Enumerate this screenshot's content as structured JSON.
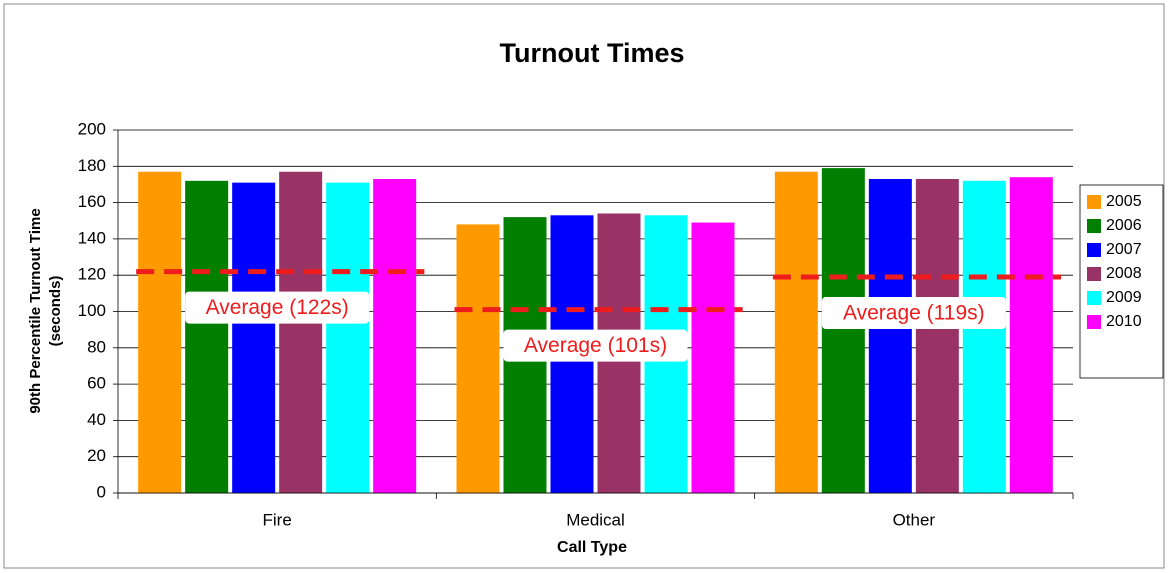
{
  "chart_data": {
    "type": "bar",
    "title": "Turnout Times",
    "ylabel": [
      "90th Percentile Turnout Time",
      "(seconds)"
    ],
    "xlabel": "Call Type",
    "categories": [
      "Fire",
      "Medical",
      "Other"
    ],
    "series": [
      {
        "name": "2005",
        "color": "#ff9900",
        "values": [
          177,
          148,
          177
        ]
      },
      {
        "name": "2006",
        "color": "#007f00",
        "values": [
          172,
          152,
          179
        ]
      },
      {
        "name": "2007",
        "color": "#0000ff",
        "values": [
          171,
          153,
          173
        ]
      },
      {
        "name": "2008",
        "color": "#993366",
        "values": [
          177,
          154,
          173
        ]
      },
      {
        "name": "2009",
        "color": "#00ffff",
        "values": [
          171,
          153,
          172
        ]
      },
      {
        "name": "2010",
        "color": "#ff00ff",
        "values": [
          173,
          149,
          174
        ]
      }
    ],
    "averages": {
      "color": "#ee1c1c",
      "values": [
        122,
        101,
        119
      ],
      "value_labels": [
        "Average (122s)",
        "Average (101s)",
        "Average (119s)"
      ]
    },
    "ylim": [
      0,
      200
    ],
    "yticks": [
      0,
      20,
      40,
      60,
      80,
      100,
      120,
      140,
      160,
      180,
      200
    ],
    "grid": true,
    "legend": "right"
  }
}
